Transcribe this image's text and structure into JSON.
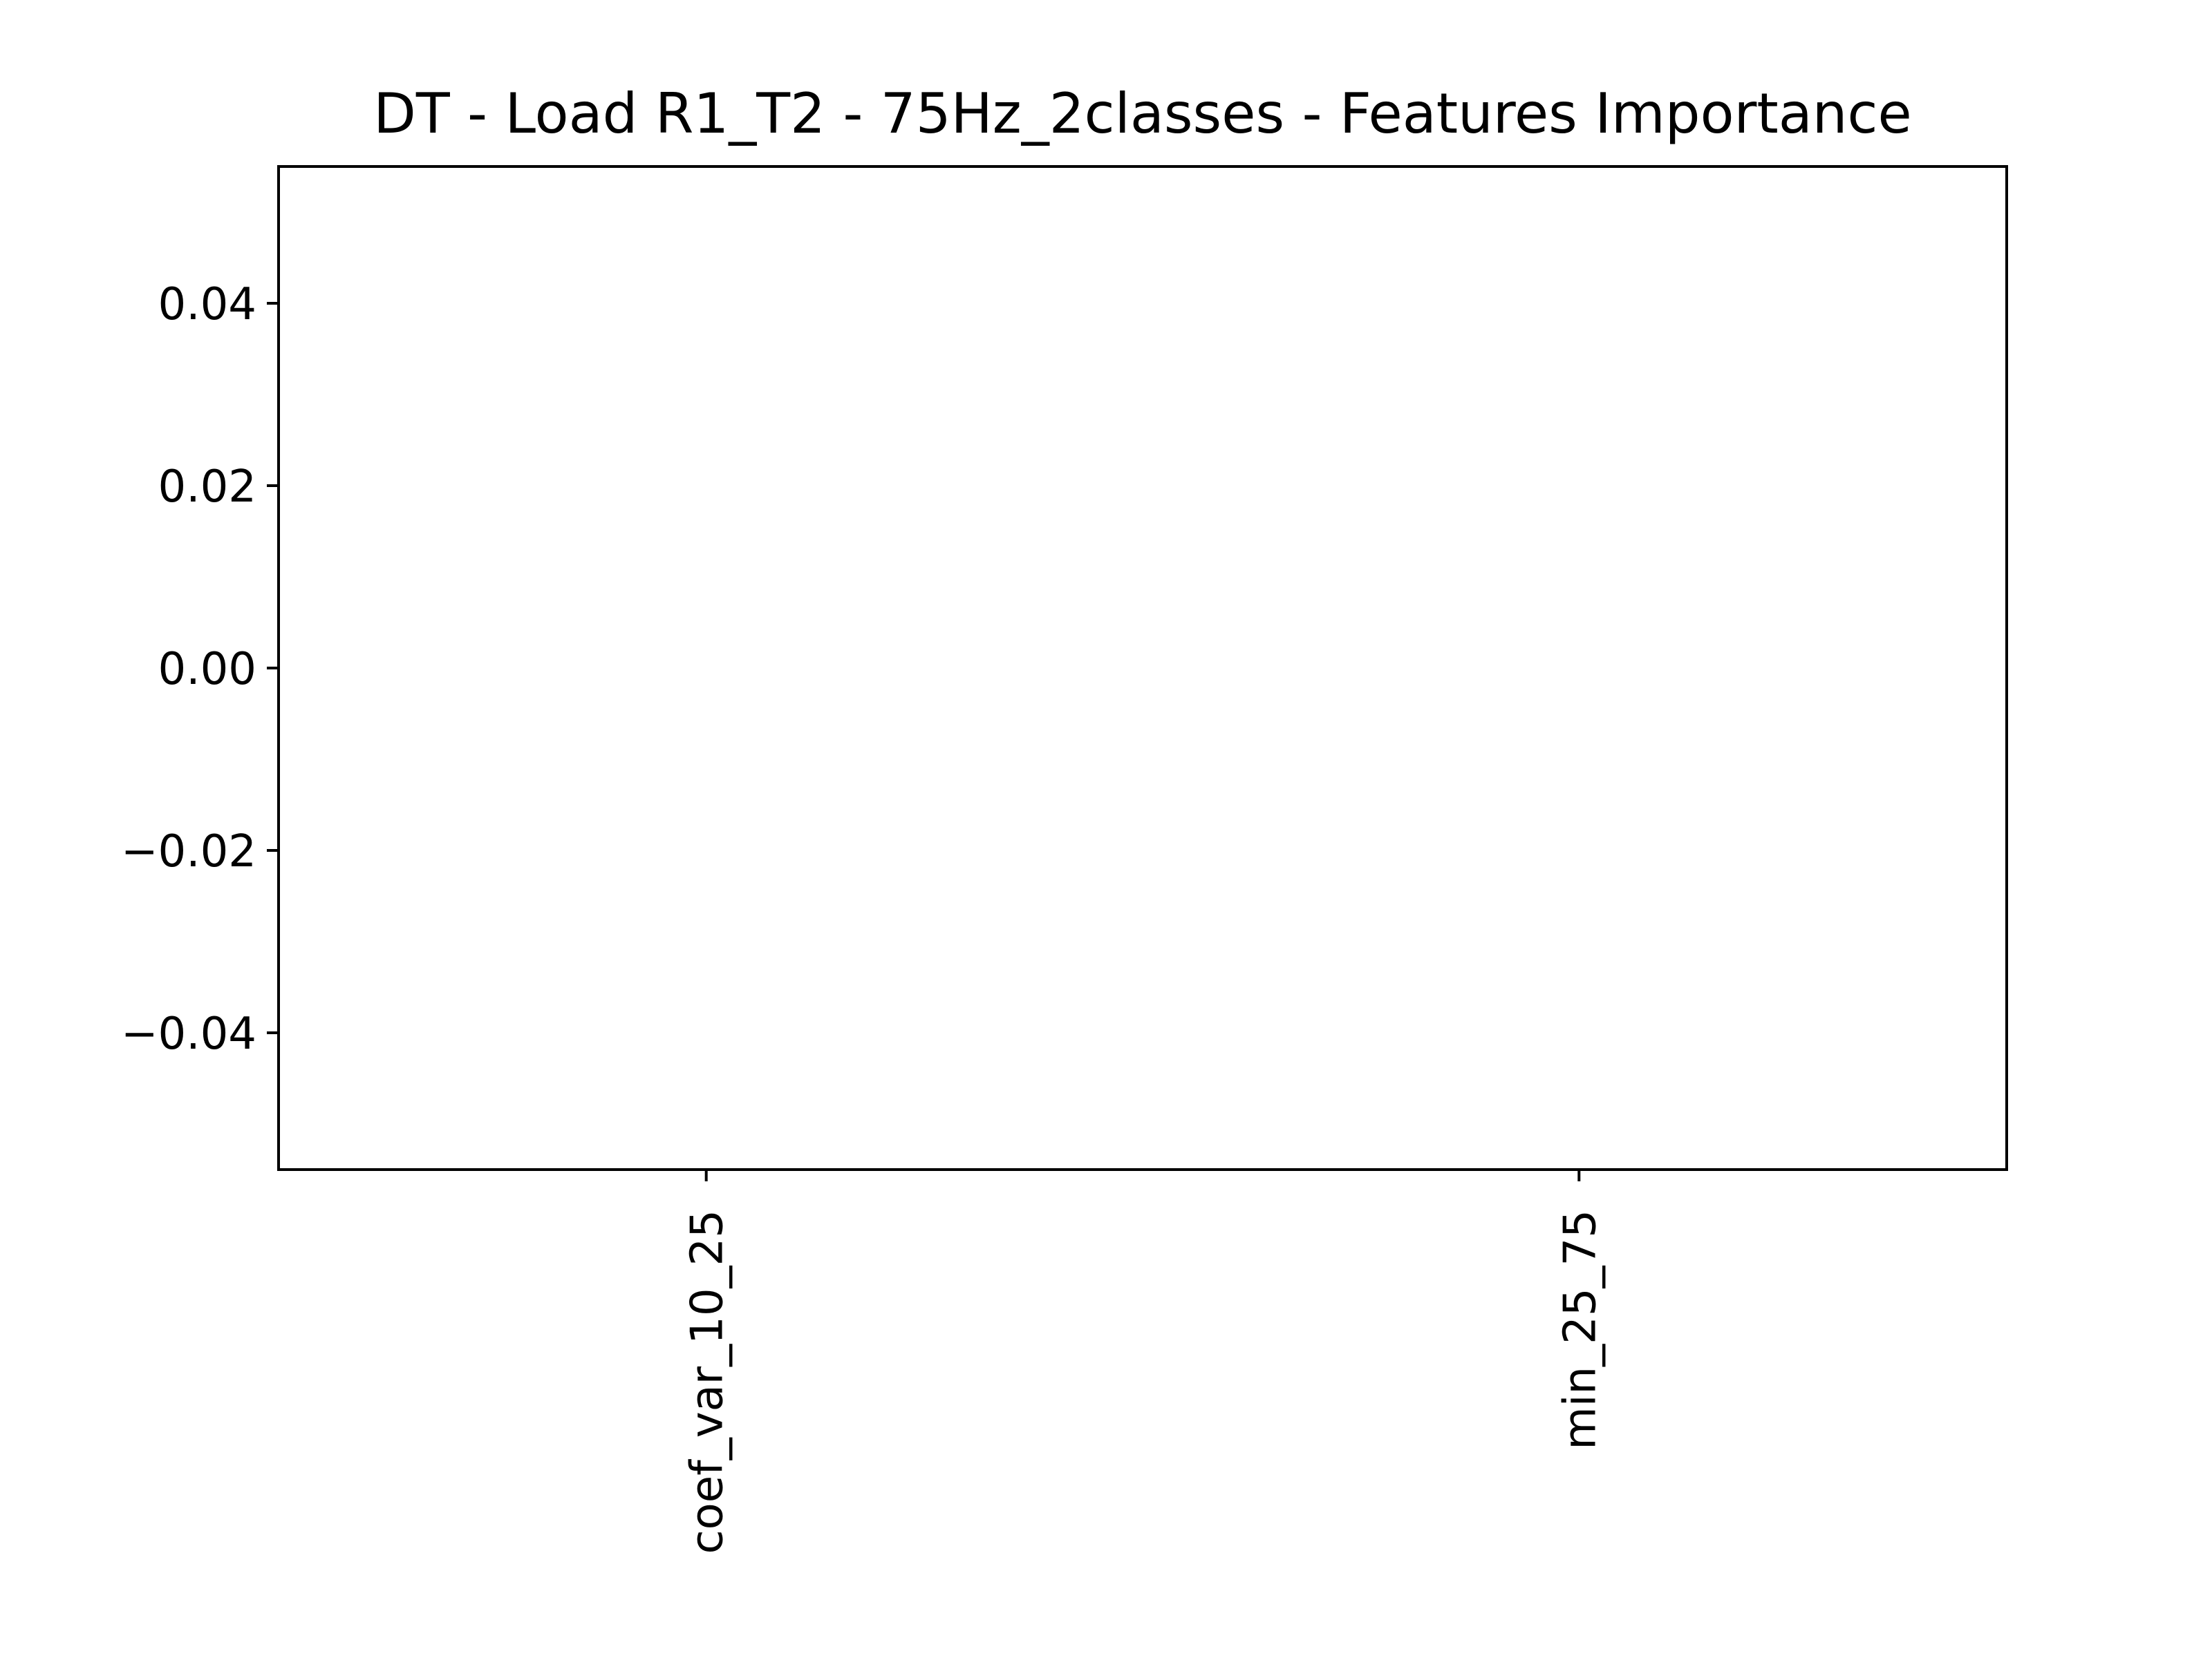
{
  "chart_data": {
    "type": "bar",
    "title": "DT - Load R1_T2 - 75Hz_2classes - Features Importance",
    "xlabel": "",
    "ylabel": "",
    "categories": [
      "coef_var_10_25",
      "min_25_75"
    ],
    "values": [
      0,
      0
    ],
    "ylim": [
      -0.055,
      0.055
    ],
    "yticks": [
      -0.04,
      -0.02,
      0.0,
      0.02,
      0.04
    ],
    "ytick_labels": [
      "−0.04",
      "−0.02",
      "0.00",
      "0.02",
      "0.04"
    ],
    "xtick_rotation": "vertical",
    "grid": false,
    "legend": "none",
    "colors": {
      "axes": "#000000",
      "background": "#ffffff",
      "bar": "#1f77b4"
    }
  }
}
